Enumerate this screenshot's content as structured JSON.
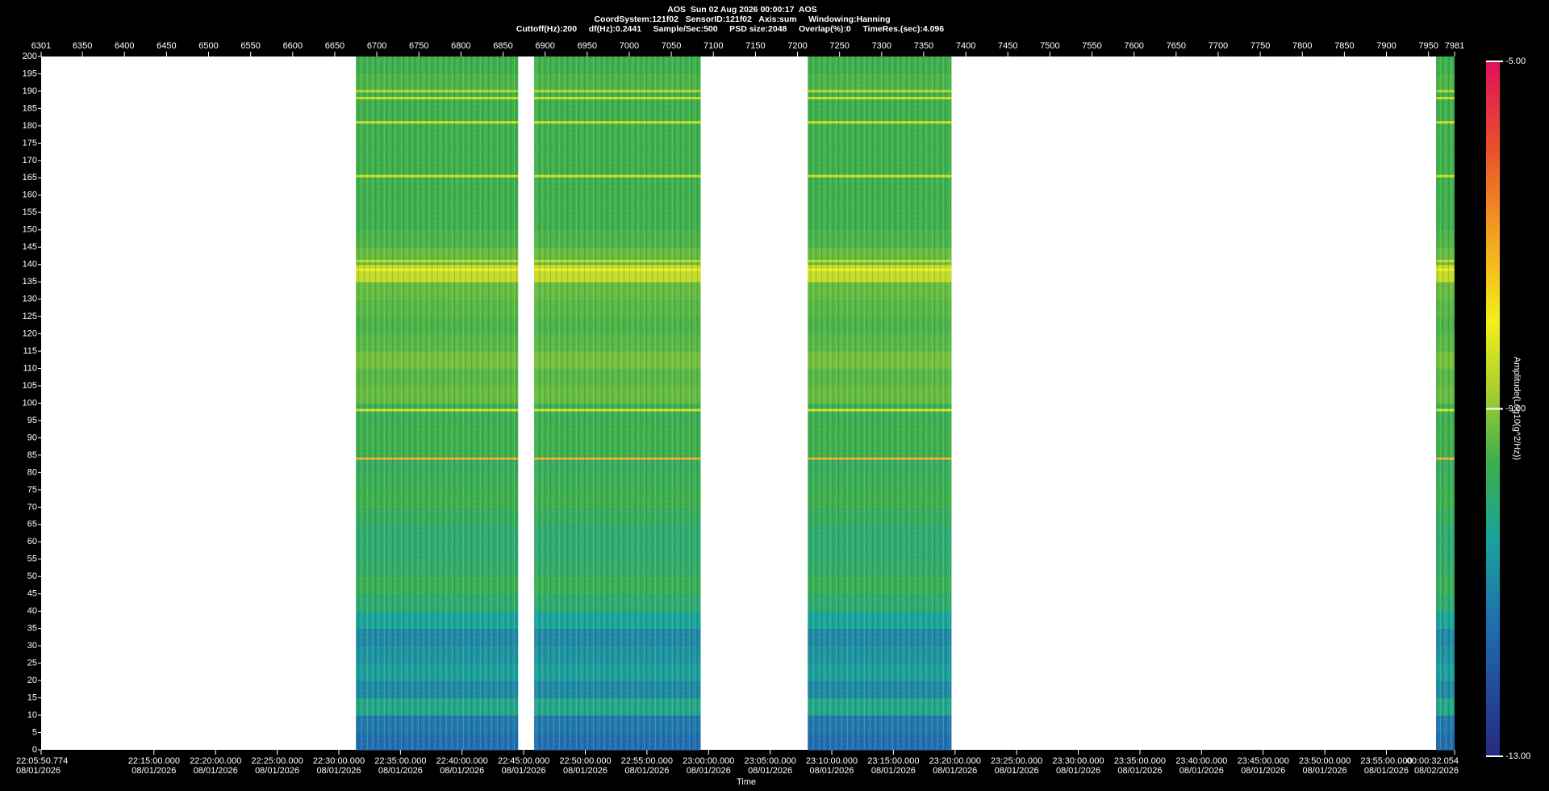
{
  "chart_data": {
    "type": "spectrogram",
    "title": "AOS  Sun 02 Aug 2026 00:00:17  AOS",
    "subtitle": "CoordSystem:121f02   SensorID:121f02   Axis:sum     Windowing:Hanning",
    "subtitle2": "Cuttoff(Hz):200     df(Hz):0.2441     Sample/Sec:500     PSD size:2048     Overlap(%):0     TimeRes.(sec):4.096",
    "x_label": "Time",
    "colorbar_label": "Amplitude(Log10(g^2/Hz))",
    "xlim": [
      6301,
      7981
    ],
    "xticks": [
      6301,
      6350,
      6400,
      6450,
      6500,
      6550,
      6600,
      6650,
      6700,
      6750,
      6800,
      6850,
      6900,
      6950,
      7000,
      7050,
      7100,
      7150,
      7200,
      7250,
      7300,
      7350,
      7400,
      7450,
      7500,
      7550,
      7600,
      7650,
      7700,
      7750,
      7800,
      7850,
      7900,
      7950,
      7981
    ],
    "time_lim": [
      79550.774,
      86432.054
    ],
    "time_ticks": [
      {
        "value": 79550.774,
        "label": "22:05:50.774",
        "date": "08/01/2026"
      },
      {
        "value": 80100,
        "label": "22:15:00.000",
        "date": "08/01/2026"
      },
      {
        "value": 80400,
        "label": "22:20:00.000",
        "date": "08/01/2026"
      },
      {
        "value": 80700,
        "label": "22:25:00.000",
        "date": "08/01/2026"
      },
      {
        "value": 81000,
        "label": "22:30:00.000",
        "date": "08/01/2026"
      },
      {
        "value": 81300,
        "label": "22:35:00.000",
        "date": "08/01/2026"
      },
      {
        "value": 81600,
        "label": "22:40:00.000",
        "date": "08/01/2026"
      },
      {
        "value": 81900,
        "label": "22:45:00.000",
        "date": "08/01/2026"
      },
      {
        "value": 82200,
        "label": "22:50:00.000",
        "date": "08/01/2026"
      },
      {
        "value": 82500,
        "label": "22:55:00.000",
        "date": "08/01/2026"
      },
      {
        "value": 82800,
        "label": "23:00:00.000",
        "date": "08/01/2026"
      },
      {
        "value": 83100,
        "label": "23:05:00.000",
        "date": "08/01/2026"
      },
      {
        "value": 83400,
        "label": "23:10:00.000",
        "date": "08/01/2026"
      },
      {
        "value": 83700,
        "label": "23:15:00.000",
        "date": "08/01/2026"
      },
      {
        "value": 84000,
        "label": "23:20:00.000",
        "date": "08/01/2026"
      },
      {
        "value": 84300,
        "label": "23:25:00.000",
        "date": "08/01/2026"
      },
      {
        "value": 84600,
        "label": "23:30:00.000",
        "date": "08/01/2026"
      },
      {
        "value": 84900,
        "label": "23:35:00.000",
        "date": "08/01/2026"
      },
      {
        "value": 85200,
        "label": "23:40:00.000",
        "date": "08/01/2026"
      },
      {
        "value": 85500,
        "label": "23:45:00.000",
        "date": "08/01/2026"
      },
      {
        "value": 85800,
        "label": "23:50:00.000",
        "date": "08/01/2026"
      },
      {
        "value": 86100,
        "label": "23:55:00.000",
        "date": "08/01/2026"
      },
      {
        "value": 86432.054,
        "label": "00:00:32.054",
        "date": "08/02/2026"
      }
    ],
    "ylim": [
      0,
      200
    ],
    "yticks": [
      0,
      5,
      10,
      15,
      20,
      25,
      30,
      35,
      40,
      45,
      50,
      55,
      60,
      65,
      70,
      75,
      80,
      85,
      90,
      95,
      100,
      105,
      110,
      115,
      120,
      125,
      130,
      135,
      140,
      145,
      150,
      155,
      160,
      165,
      170,
      175,
      180,
      185,
      190,
      195,
      200
    ],
    "segments": [
      [
        6675,
        6868
      ],
      [
        6887,
        7085
      ],
      [
        7212,
        7383
      ],
      [
        7959,
        7981
      ]
    ],
    "freq_bins": [
      0,
      5,
      10,
      15,
      20,
      25,
      30,
      35,
      40,
      45,
      50,
      55,
      60,
      65,
      70,
      75,
      80,
      85,
      90,
      95,
      100,
      105,
      110,
      115,
      120,
      125,
      130,
      135,
      140,
      145,
      150,
      155,
      160,
      165,
      170,
      175,
      180,
      185,
      190,
      195,
      200
    ],
    "amplitude": [
      -11.5,
      -11.3,
      -10.3,
      -11,
      -10.6,
      -10.8,
      -11,
      -10.5,
      -10,
      -9.7,
      -9.9,
      -10,
      -10,
      -9.8,
      -9.6,
      -9.7,
      -9.8,
      -9.6,
      -9.6,
      -9.7,
      -9.3,
      -9.4,
      -9.2,
      -9.4,
      -9.5,
      -9.4,
      -9.3,
      -8.5,
      -9.3,
      -9.5,
      -9.6,
      -9.6,
      -9.6,
      -9.6,
      -9.6,
      -9.6,
      -9.6,
      -9.6,
      -9.5,
      -9.6
    ],
    "tones": [
      {
        "freq": 84,
        "amplitude": -7.2
      },
      {
        "freq": 98,
        "amplitude": -8.3
      },
      {
        "freq": 138.5,
        "amplitude": -8
      },
      {
        "freq": 141,
        "amplitude": -8.5
      },
      {
        "freq": 165.5,
        "amplitude": -8.4
      },
      {
        "freq": 181,
        "amplitude": -8.4
      },
      {
        "freq": 188,
        "amplitude": -8.4
      },
      {
        "freq": 190,
        "amplitude": -8.6
      }
    ],
    "clim": [
      -13,
      -5
    ],
    "cticks": [
      {
        "value": -13,
        "label": "-13.00"
      },
      {
        "value": -9,
        "label": "-9.00"
      },
      {
        "value": -5,
        "label": "-5.00"
      }
    ],
    "colormap": [
      [
        -13,
        "#262a80"
      ],
      [
        -11.5,
        "#1f6cb0"
      ],
      [
        -10.5,
        "#18a39a"
      ],
      [
        -9.6,
        "#3caf4c"
      ],
      [
        -8.8,
        "#a6cf2c"
      ],
      [
        -8,
        "#f3ef1c"
      ],
      [
        -7,
        "#f4a020"
      ],
      [
        -6,
        "#e8502a"
      ],
      [
        -5,
        "#e0105a"
      ]
    ]
  }
}
